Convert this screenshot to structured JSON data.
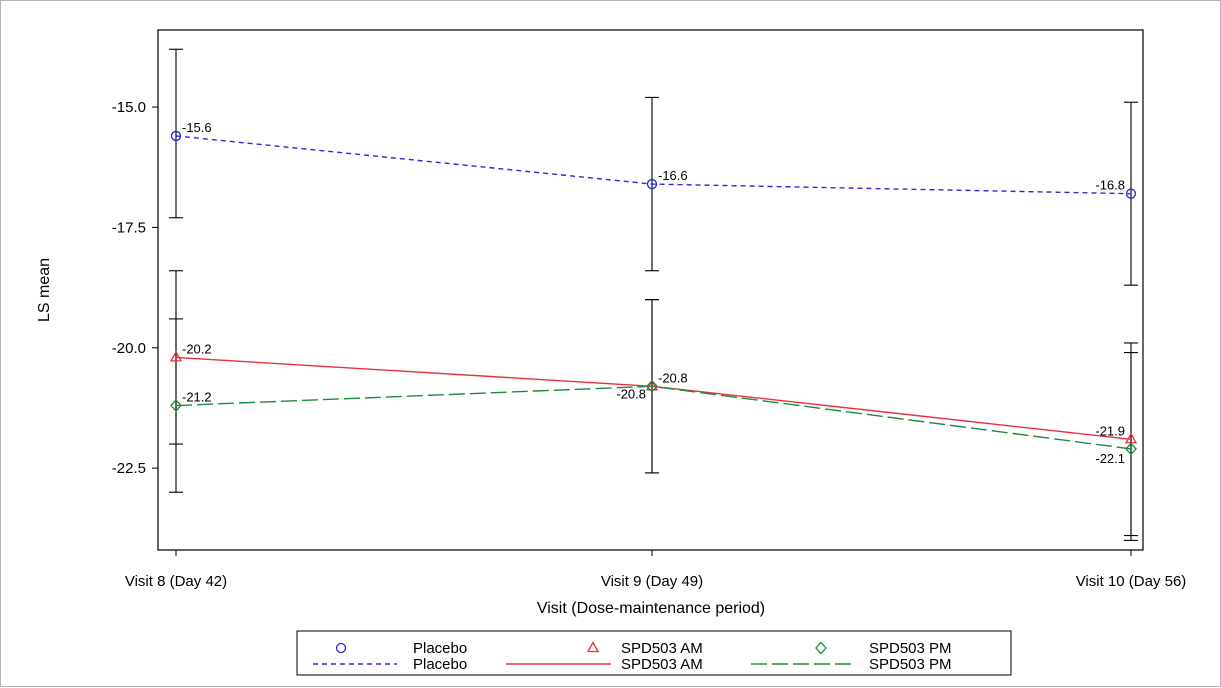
{
  "chart_data": {
    "type": "line",
    "title": "",
    "xlabel": "Visit (Dose-maintenance period)",
    "ylabel": "LS mean",
    "categories": [
      "Visit 8 (Day 42)",
      "Visit 9 (Day 49)",
      "Visit 10 (Day 56)"
    ],
    "y_ticks": [
      -15.0,
      -17.5,
      -20.0,
      -22.5
    ],
    "y_tick_labels": [
      "-15.0",
      "-17.5",
      "-20.0",
      "-22.5"
    ],
    "ylim": [
      -24.2,
      -13.4
    ],
    "grid": false,
    "legend_position": "bottom",
    "series": [
      {
        "name": "Placebo",
        "color": "#2a2ad6",
        "line_style": "dashed",
        "marker": "circle",
        "values": [
          -15.6,
          -16.6,
          -16.8
        ],
        "labels": [
          "-15.6",
          "-16.6",
          "-16.8"
        ],
        "error_low": [
          -17.3,
          -18.4,
          -18.7
        ],
        "error_high": [
          -13.8,
          -14.8,
          -14.9
        ]
      },
      {
        "name": "SPD503 AM",
        "color": "#e8303c",
        "line_style": "solid",
        "marker": "triangle",
        "values": [
          -20.2,
          -20.8,
          -21.9
        ],
        "labels": [
          "-20.2",
          "-20.8",
          "-21.9"
        ],
        "error_low": [
          -22.0,
          -22.6,
          -23.9
        ],
        "error_high": [
          -18.4,
          -19.0,
          -19.9
        ]
      },
      {
        "name": "SPD503 PM",
        "color": "#1e8a3c",
        "line_style": "longdash",
        "marker": "diamond",
        "values": [
          -21.2,
          -20.8,
          -22.1
        ],
        "labels": [
          "-21.2",
          "-20.8",
          "-22.1"
        ],
        "error_low": [
          -23.0,
          -22.6,
          -24.0
        ],
        "error_high": [
          -19.4,
          -19.0,
          -20.1
        ]
      }
    ],
    "legend": {
      "marker_row": [
        "Placebo",
        "SPD503 AM",
        "SPD503 PM"
      ],
      "line_row": [
        "Placebo",
        "SPD503 AM",
        "SPD503 PM"
      ]
    }
  }
}
